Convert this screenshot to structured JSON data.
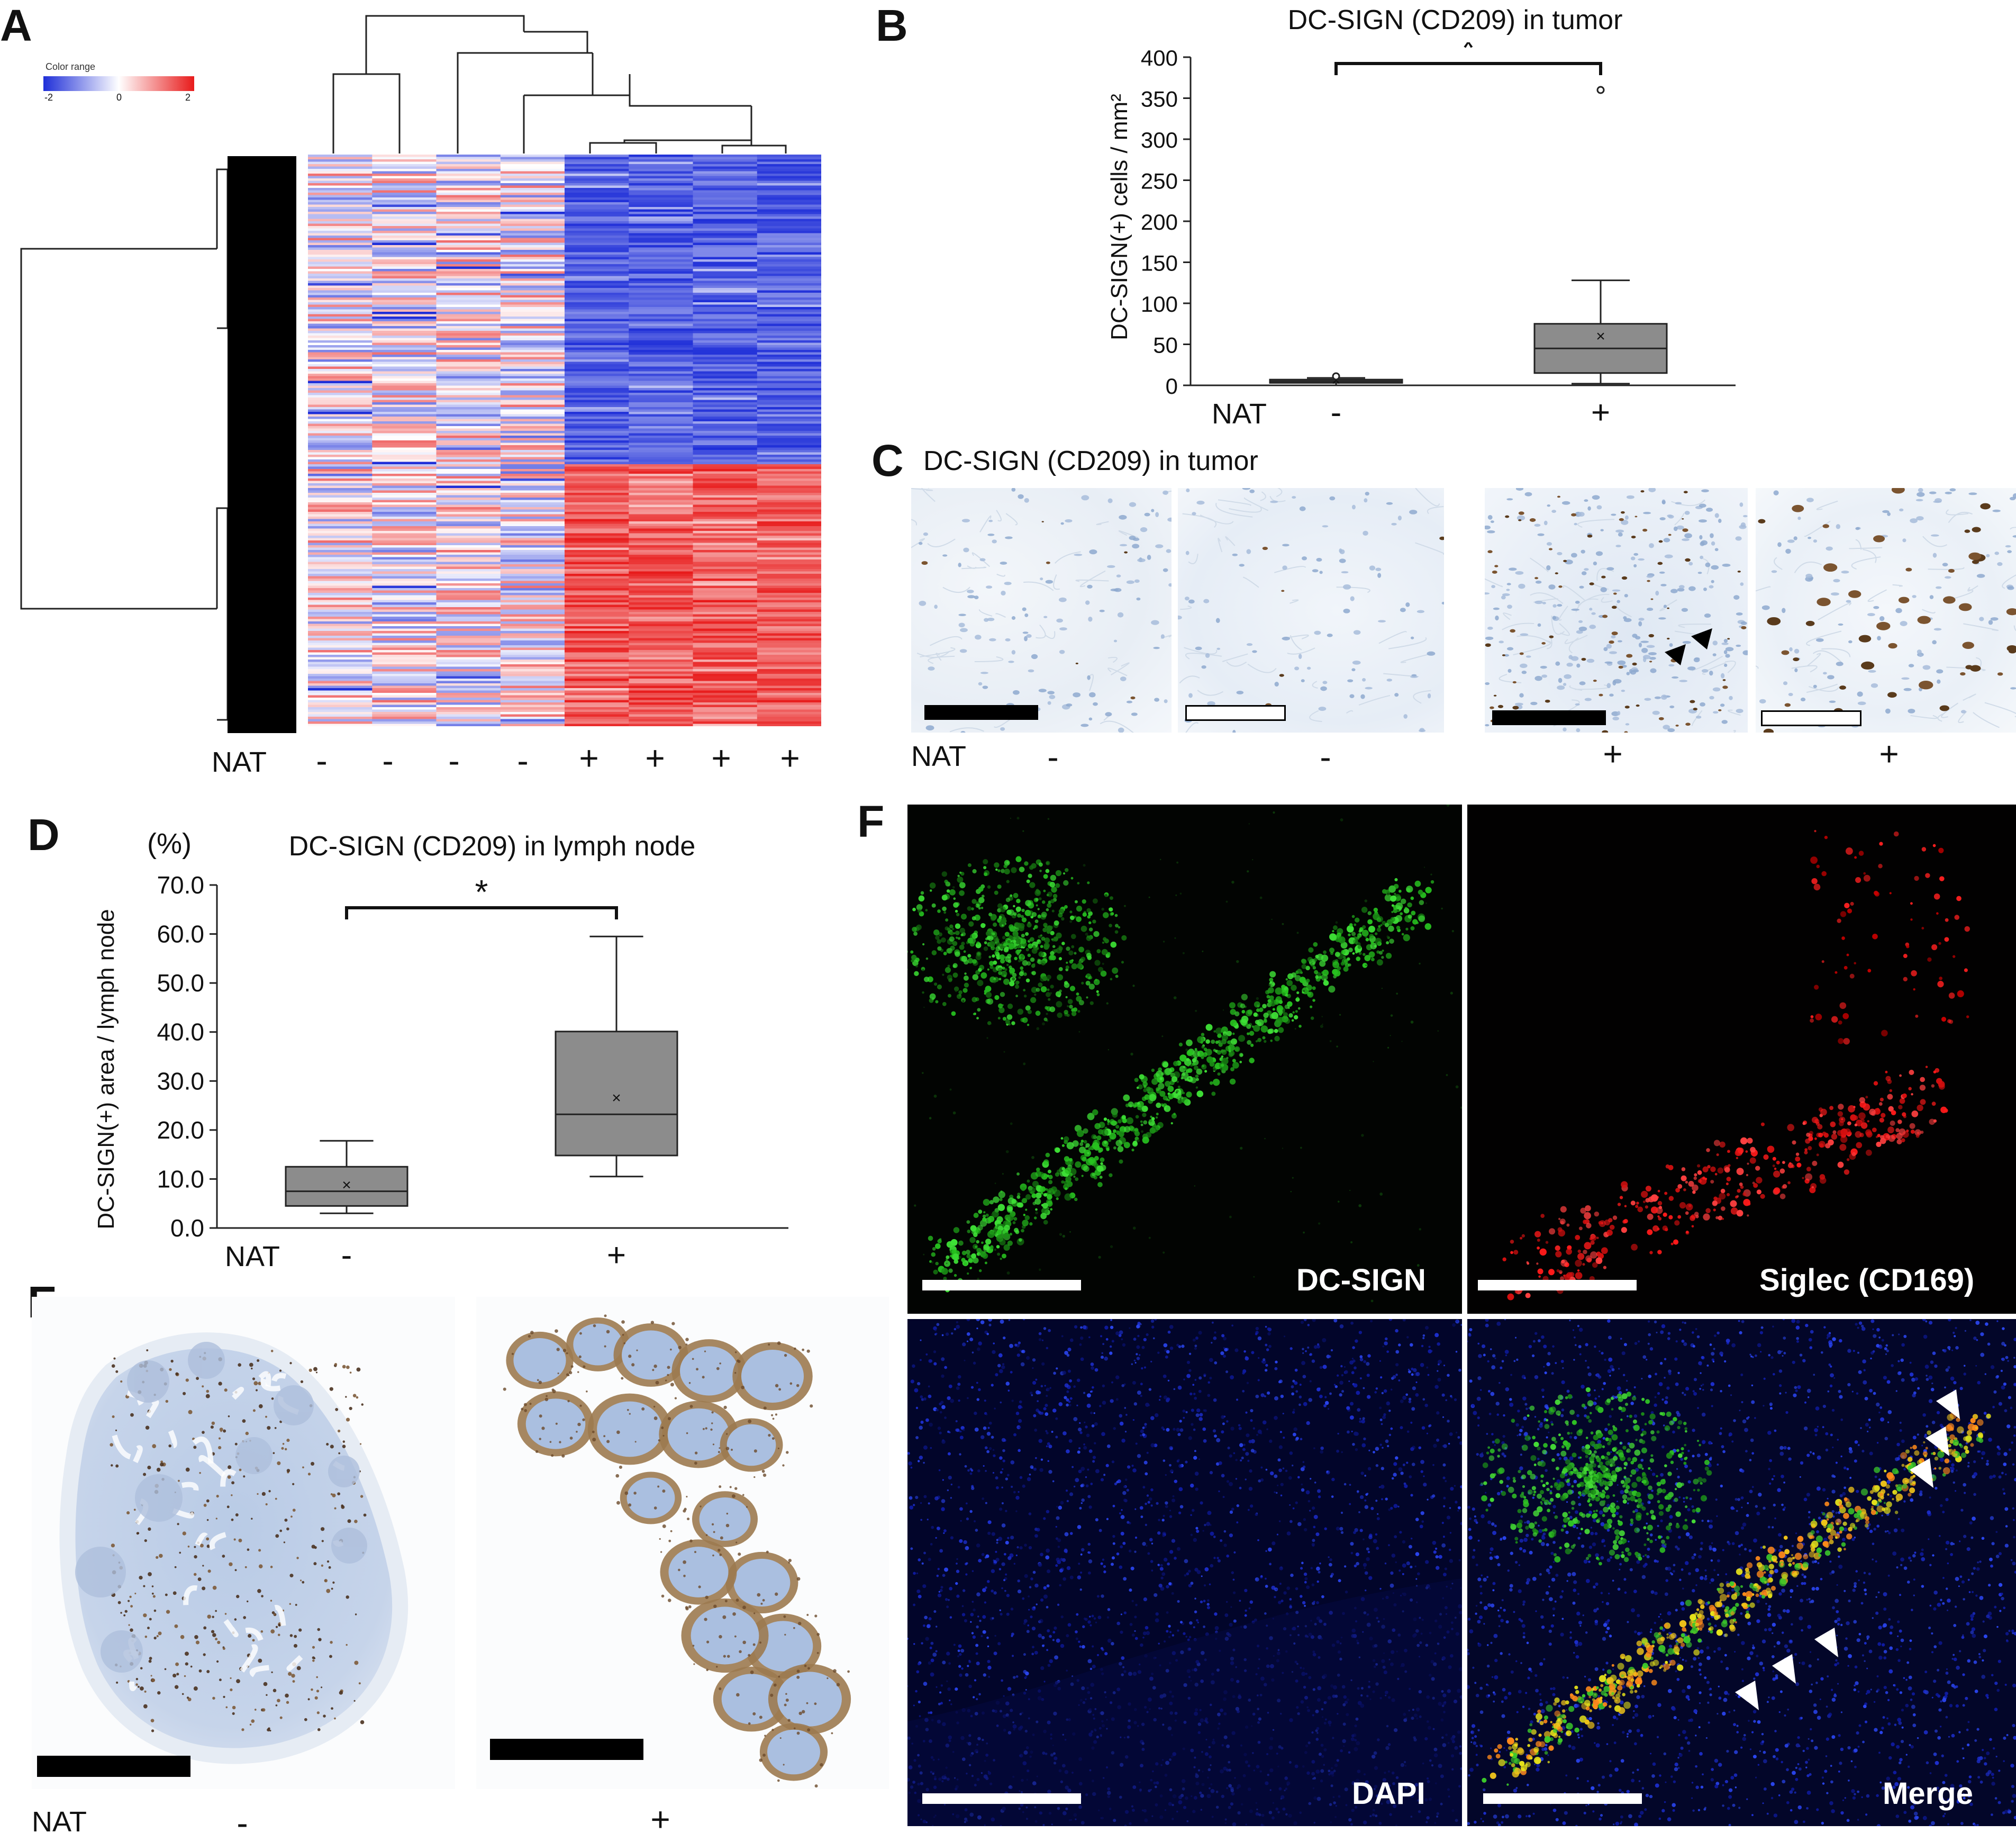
{
  "panels": {
    "A": {
      "label": "A",
      "color_range": {
        "title": "Color range",
        "ticks": [
          "-2",
          "0",
          "2"
        ],
        "low_color": "#1f2fd8",
        "mid_color": "#ffffff",
        "high_color": "#e81b1b"
      },
      "nat_label": "NAT",
      "signs": [
        "-",
        "-",
        "-",
        "-",
        "+",
        "+",
        "+",
        "+"
      ]
    },
    "B": {
      "label": "B",
      "title": "DC-SIGN (CD209) in tumor",
      "ylabel": "DC-SIGN(+) cells / mm²",
      "ticks": [
        "0",
        "50",
        "100",
        "150",
        "200",
        "250",
        "300",
        "350",
        "400"
      ],
      "significance": "*",
      "nat_label": "NAT",
      "signs": [
        "-",
        "+"
      ]
    },
    "C": {
      "label": "C",
      "title": "DC-SIGN (CD209) in tumor",
      "nat_label": "NAT",
      "signs": [
        "-",
        "-",
        "+",
        "+"
      ]
    },
    "D": {
      "label": "D",
      "unit": "(%)",
      "title": "DC-SIGN (CD209) in lymph node",
      "ylabel": "DC-SIGN(+) area / lymph node",
      "ticks": [
        "0.0",
        "10.0",
        "20.0",
        "30.0",
        "40.0",
        "50.0",
        "60.0",
        "70.0"
      ],
      "significance": "*",
      "nat_label": "NAT",
      "signs": [
        "-",
        "+"
      ]
    },
    "E": {
      "label": "E",
      "nat_label": "NAT",
      "signs": [
        "-",
        "+"
      ]
    },
    "F": {
      "label": "F",
      "channels": [
        "DC-SIGN",
        "Siglec (CD169)",
        "DAPI",
        "Merge"
      ]
    }
  },
  "chart_data": [
    {
      "type": "box",
      "panel": "B",
      "title": "DC-SIGN (CD209) in tumor",
      "xlabel": "NAT",
      "ylabel": "DC-SIGN(+) cells / mm²",
      "ylim": [
        0,
        400
      ],
      "categories": [
        "-",
        "+"
      ],
      "boxes": [
        {
          "category": "-",
          "min": 0,
          "q1": 3,
          "median": 5,
          "q3": 7,
          "max": 9,
          "mean": 6,
          "outliers": [
            11
          ]
        },
        {
          "category": "+",
          "min": 2,
          "q1": 15,
          "median": 45,
          "q3": 75,
          "max": 128,
          "mean": 60,
          "outliers": [
            360
          ]
        }
      ],
      "significance": "*"
    },
    {
      "type": "box",
      "panel": "D",
      "title": "DC-SIGN (CD209) in lymph node",
      "xlabel": "NAT",
      "ylabel": "DC-SIGN(+) area / lymph node",
      "unit": "(%)",
      "ylim": [
        0,
        70
      ],
      "categories": [
        "-",
        "+"
      ],
      "boxes": [
        {
          "category": "-",
          "min": 3,
          "q1": 4.5,
          "median": 7.5,
          "q3": 12.5,
          "max": 17.8,
          "mean": 8.8,
          "outliers": []
        },
        {
          "category": "+",
          "min": 10.5,
          "q1": 14.8,
          "median": 23.2,
          "q3": 40.1,
          "max": 59.5,
          "mean": 26.6,
          "outliers": []
        }
      ],
      "significance": "*"
    }
  ]
}
